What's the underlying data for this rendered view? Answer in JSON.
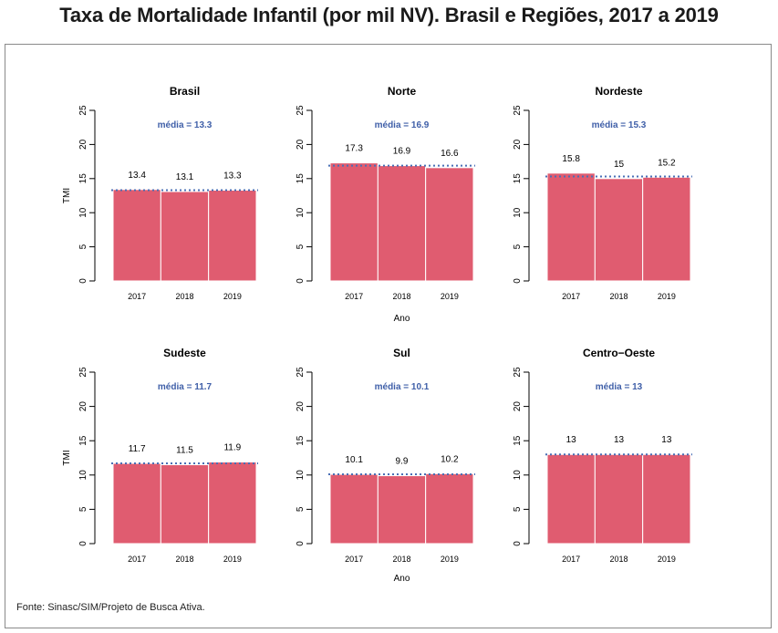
{
  "title": "Taxa de Mortalidade Infantil (por mil NV). Brasil e Regiões, 2017 a 2019",
  "source": "Fonte: Sinasc/SIM/Projeto de Busca Ativa.",
  "colors": {
    "bar": "#e05c70",
    "mean_line": "#4a6fb5",
    "mean_text": "#3f5fa8",
    "axis": "#000000"
  },
  "chart_data": [
    {
      "type": "bar",
      "title": "Brasil",
      "categories": [
        "2017",
        "2018",
        "2019"
      ],
      "values": [
        13.4,
        13.1,
        13.3
      ],
      "value_labels": [
        "13.4",
        "13.1",
        "13.3"
      ],
      "mean": 13.3,
      "mean_label": "média =  13.3",
      "xlabel": "",
      "ylabel": "TMI",
      "ylim": [
        0,
        25
      ],
      "yticks": [
        "0",
        "5",
        "10",
        "15",
        "20",
        "25"
      ]
    },
    {
      "type": "bar",
      "title": "Norte",
      "categories": [
        "2017",
        "2018",
        "2019"
      ],
      "values": [
        17.3,
        16.9,
        16.6
      ],
      "value_labels": [
        "17.3",
        "16.9",
        "16.6"
      ],
      "mean": 16.9,
      "mean_label": "média =  16.9",
      "xlabel": "Ano",
      "ylabel": "",
      "ylim": [
        0,
        25
      ],
      "yticks": [
        "0",
        "5",
        "10",
        "15",
        "20",
        "25"
      ]
    },
    {
      "type": "bar",
      "title": "Nordeste",
      "categories": [
        "2017",
        "2018",
        "2019"
      ],
      "values": [
        15.8,
        15.0,
        15.2
      ],
      "value_labels": [
        "15.8",
        "15",
        "15.2"
      ],
      "mean": 15.3,
      "mean_label": "média =  15.3",
      "xlabel": "",
      "ylabel": "",
      "ylim": [
        0,
        25
      ],
      "yticks": [
        "0",
        "5",
        "10",
        "15",
        "20",
        "25"
      ]
    },
    {
      "type": "bar",
      "title": "Sudeste",
      "categories": [
        "2017",
        "2018",
        "2019"
      ],
      "values": [
        11.7,
        11.5,
        11.9
      ],
      "value_labels": [
        "11.7",
        "11.5",
        "11.9"
      ],
      "mean": 11.7,
      "mean_label": "média =  11.7",
      "xlabel": "",
      "ylabel": "TMI",
      "ylim": [
        0,
        25
      ],
      "yticks": [
        "0",
        "5",
        "10",
        "15",
        "20",
        "25"
      ]
    },
    {
      "type": "bar",
      "title": "Sul",
      "categories": [
        "2017",
        "2018",
        "2019"
      ],
      "values": [
        10.1,
        9.9,
        10.2
      ],
      "value_labels": [
        "10.1",
        "9.9",
        "10.2"
      ],
      "mean": 10.1,
      "mean_label": "média =  10.1",
      "xlabel": "Ano",
      "ylabel": "",
      "ylim": [
        0,
        25
      ],
      "yticks": [
        "0",
        "5",
        "10",
        "15",
        "20",
        "25"
      ]
    },
    {
      "type": "bar",
      "title": "Centro−Oeste",
      "categories": [
        "2017",
        "2018",
        "2019"
      ],
      "values": [
        13,
        13,
        13
      ],
      "value_labels": [
        "13",
        "13",
        "13"
      ],
      "mean": 13,
      "mean_label": "média =  13",
      "xlabel": "",
      "ylabel": "",
      "ylim": [
        0,
        25
      ],
      "yticks": [
        "0",
        "5",
        "10",
        "15",
        "20",
        "25"
      ]
    }
  ]
}
